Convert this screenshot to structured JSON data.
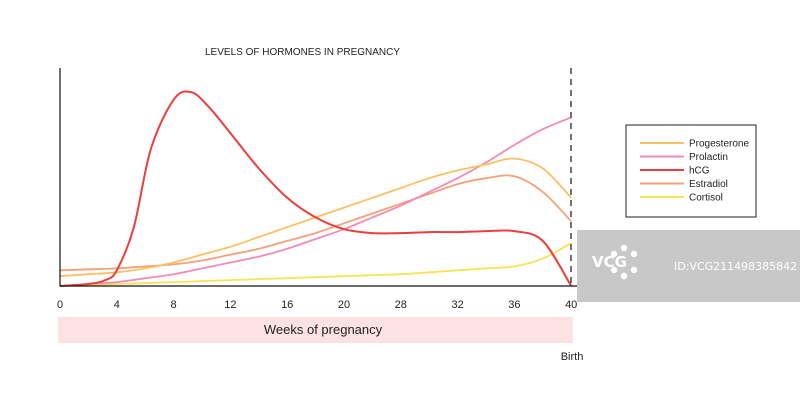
{
  "chart_data": {
    "type": "line",
    "title": "LEVELS OF HORMONES IN PREGNANCY",
    "xlabel": "Weeks of pregnancy",
    "ylabel": "",
    "x_tick_labels": [
      "0",
      "4",
      "8",
      "12",
      "16",
      "20",
      "28",
      "32",
      "36",
      "40"
    ],
    "x": [
      0,
      1,
      2,
      3,
      4,
      5,
      6,
      7,
      8,
      9
    ],
    "ylim": [
      0,
      100
    ],
    "grid": false,
    "legend_position": "right",
    "annotation": "Birth",
    "series": [
      {
        "name": "Progesterone",
        "color": "#fbc064",
        "x": [
          0,
          0.5,
          1,
          1.5,
          2,
          2.5,
          3,
          3.5,
          4,
          4.5,
          5,
          5.5,
          6,
          6.5,
          7,
          7.5,
          8,
          8.5,
          9
        ],
        "values": [
          5,
          6,
          7,
          9,
          12,
          16,
          20,
          25,
          30,
          35,
          40,
          45,
          50,
          55,
          59,
          62,
          65,
          60,
          45
        ]
      },
      {
        "name": "Prolactin",
        "color": "#f28bb8",
        "x": [
          0,
          0.5,
          1,
          1.5,
          2,
          2.5,
          3,
          3.5,
          4,
          4.5,
          5,
          5.5,
          6,
          6.5,
          7,
          7.5,
          8,
          8.5,
          9
        ],
        "values": [
          0,
          1,
          2,
          4,
          6,
          9,
          12,
          15,
          19,
          24,
          29,
          35,
          41,
          48,
          55,
          63,
          72,
          80,
          86
        ]
      },
      {
        "name": "hCG",
        "color": "#ee3d3d",
        "x": [
          0,
          0.5,
          0.8,
          1,
          1.3,
          1.6,
          2,
          2.3,
          2.6,
          3,
          3.5,
          4,
          4.5,
          5,
          5.5,
          6,
          6.5,
          7,
          7.5,
          8,
          8.5,
          9
        ],
        "values": [
          0,
          1,
          3,
          8,
          30,
          70,
          95,
          99,
          92,
          78,
          60,
          45,
          35,
          29,
          27,
          27,
          27.5,
          27.5,
          28,
          28,
          23,
          0
        ]
      },
      {
        "name": "Estradiol",
        "color": "#f4a07a",
        "x": [
          0,
          0.5,
          1,
          1.5,
          2,
          2.5,
          3,
          3.5,
          4,
          4.5,
          5,
          5.5,
          6,
          6.5,
          7,
          7.5,
          8,
          8.5,
          9
        ],
        "values": [
          8,
          8.5,
          9,
          10,
          11,
          13,
          16,
          19,
          23,
          27,
          32,
          37,
          42,
          47,
          52,
          55,
          56,
          48,
          33
        ]
      },
      {
        "name": "Cortisol",
        "color": "#f7e354",
        "x": [
          0,
          0.5,
          1,
          1.5,
          2,
          2.5,
          3,
          3.5,
          4,
          4.5,
          5,
          5.5,
          6,
          6.5,
          7,
          7.5,
          8,
          8.5,
          9
        ],
        "values": [
          0,
          0.5,
          1,
          1.5,
          2,
          2.5,
          3,
          3.5,
          4,
          4.5,
          5,
          5.5,
          6,
          7,
          8,
          9,
          10,
          14,
          22
        ]
      }
    ]
  },
  "colors": {
    "axis": "#111111",
    "label_band": "#fde2e4",
    "watermark_bg": "#c8c8c8"
  },
  "watermark": {
    "logo": "VCG",
    "id_text": "ID:VCG211498385842"
  }
}
